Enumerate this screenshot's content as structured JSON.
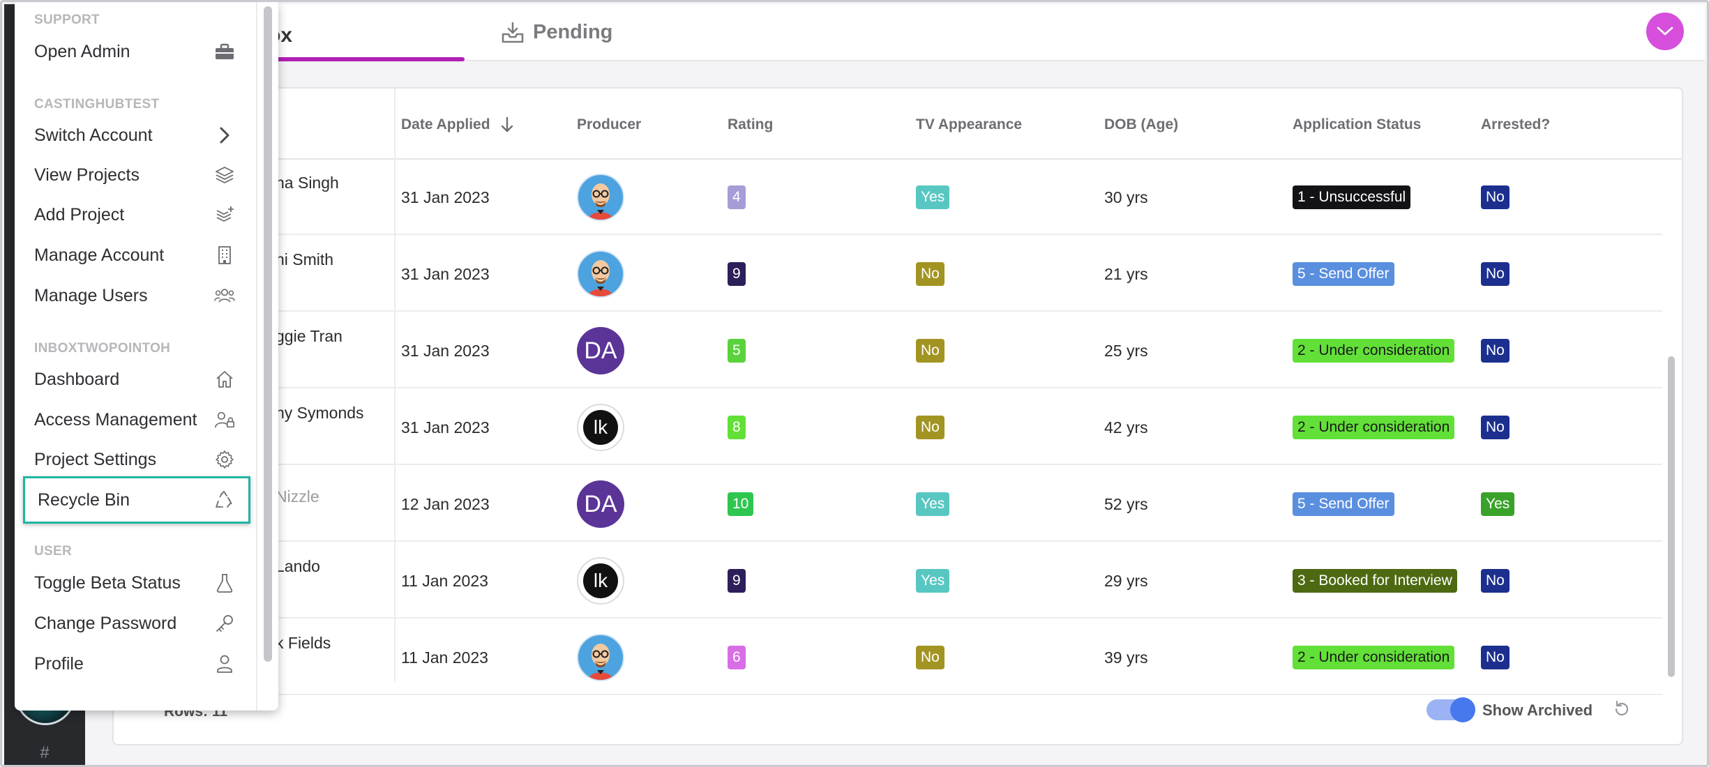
{
  "tabs": {
    "inbox_label": "Inbox",
    "inbox_visible": "ox",
    "pending_label": "Pending"
  },
  "table": {
    "headers": {
      "date_applied": "Date Applied",
      "producer": "Producer",
      "rating": "Rating",
      "tv_appearance": "TV Appearance",
      "dob": "DOB (Age)",
      "application_status": "Application Status",
      "arrested": "Arrested?"
    },
    "rows": [
      {
        "name": "na Singh",
        "date": "31 Jan 2023",
        "producer_avatar": "cartoon",
        "rating": "4",
        "rating_color": "#a89cd6",
        "tv": "Yes",
        "tv_color": "#58c7c2",
        "age": "30 yrs",
        "status": "1 - Unsuccessful",
        "status_color": "#131316",
        "arrested": "No",
        "arrested_color": "#1c2f8e",
        "muted": false
      },
      {
        "name": "ni Smith",
        "date": "31 Jan 2023",
        "producer_avatar": "cartoon",
        "rating": "9",
        "rating_color": "#2d1f59",
        "tv": "No",
        "tv_color": "#a29422",
        "age": "21 yrs",
        "status": "5 - Send Offer",
        "status_color": "#5a8fe0",
        "arrested": "No",
        "arrested_color": "#1c2f8e",
        "muted": false
      },
      {
        "name": "ggie Tran",
        "date": "31 Jan 2023",
        "producer_avatar": "DA",
        "rating": "5",
        "rating_color": "#5ad23b",
        "tv": "No",
        "tv_color": "#a29422",
        "age": "25 yrs",
        "status": "2 - Under consideration",
        "status_color": "#62e038",
        "arrested": "No",
        "arrested_color": "#1c2f8e",
        "muted": false
      },
      {
        "name": "ny Symonds",
        "date": "31 Jan 2023",
        "producer_avatar": "lk",
        "rating": "8",
        "rating_color": "#62e038",
        "tv": "No",
        "tv_color": "#a29422",
        "age": "42 yrs",
        "status": "2 - Under consideration",
        "status_color": "#62e038",
        "arrested": "No",
        "arrested_color": "#1c2f8e",
        "muted": false
      },
      {
        "name": "Nizzle",
        "date": "12 Jan 2023",
        "producer_avatar": "DA",
        "rating": "10",
        "rating_color": "#2ec64f",
        "tv": "Yes",
        "tv_color": "#58c7c2",
        "age": "52 yrs",
        "status": "5 - Send Offer",
        "status_color": "#5a8fe0",
        "arrested": "Yes",
        "arrested_color": "#3aa22b",
        "muted": true
      },
      {
        "name": "Lando",
        "date": "11 Jan 2023",
        "producer_avatar": "lk",
        "rating": "9",
        "rating_color": "#2d1f59",
        "tv": "Yes",
        "tv_color": "#58c7c2",
        "age": "29 yrs",
        "status": "3 - Booked for Interview",
        "status_color": "#4d6a12",
        "arrested": "No",
        "arrested_color": "#1c2f8e",
        "muted": false
      },
      {
        "name": "k Fields",
        "date": "11 Jan 2023",
        "producer_avatar": "cartoon",
        "rating": "6",
        "rating_color": "#d86ee6",
        "tv": "No",
        "tv_color": "#a29422",
        "age": "39 yrs",
        "status": "2 - Under consideration",
        "status_color": "#62e038",
        "arrested": "No",
        "arrested_color": "#1c2f8e",
        "muted": false
      }
    ]
  },
  "footer": {
    "rows_label": "Rows: 11",
    "show_archived": "Show Archived"
  },
  "menu": {
    "sections": {
      "support": "SUPPORT",
      "account": "CASTINGHUBTEST",
      "project": "INBOXTWOPOINTOH",
      "user": "USER"
    },
    "items": {
      "open_admin": "Open Admin",
      "switch_account": "Switch Account",
      "view_projects": "View Projects",
      "add_project": "Add Project",
      "manage_account": "Manage Account",
      "manage_users": "Manage Users",
      "dashboard": "Dashboard",
      "access_management": "Access Management",
      "project_settings": "Project Settings",
      "recycle_bin": "Recycle Bin",
      "toggle_beta": "Toggle Beta Status",
      "change_password": "Change Password",
      "profile": "Profile"
    }
  },
  "rail": {
    "hash": "#"
  },
  "colors": {
    "accent": "#b21fb3",
    "menu_button": "#d64fdc",
    "highlight": "#1fb5a3",
    "toggle": "#4878ee"
  }
}
